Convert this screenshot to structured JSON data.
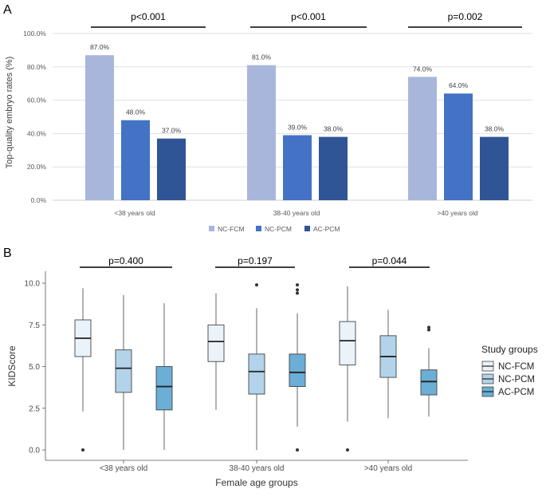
{
  "chart_data": [
    {
      "panel": "A",
      "type": "bar",
      "ylabel": "Top-quality embryo rates (%)",
      "ylim": [
        0,
        100
      ],
      "yticks": [
        "0.0%",
        "20.0%",
        "40.0%",
        "60.0%",
        "80.0%",
        "100.0%"
      ],
      "categories": [
        "<38 years old",
        "38-40 years old",
        ">40 years old"
      ],
      "series": [
        {
          "name": "NC-FCM",
          "color": "#a9b6dc",
          "values": [
            87.0,
            81.0,
            74.0
          ],
          "labels": [
            "87.0%",
            "81.0%",
            "74.0%"
          ]
        },
        {
          "name": "NC-PCM",
          "color": "#4472c4",
          "values": [
            48.0,
            39.0,
            64.0
          ],
          "labels": [
            "48.0%",
            "39.0%",
            "64.0%"
          ]
        },
        {
          "name": "AC-PCM",
          "color": "#305596",
          "values": [
            37.0,
            38.0,
            38.0
          ],
          "labels": [
            "37.0%",
            "38.0%",
            "38.0%"
          ]
        }
      ],
      "pvalues": [
        "p<0.001",
        "p<0.001",
        "p=0.002"
      ],
      "legend_position": "bottom"
    },
    {
      "panel": "B",
      "type": "box",
      "xlabel": "Female age groups",
      "ylabel": "KIDScore",
      "ylim": [
        0,
        10
      ],
      "yticks": [
        "0.0",
        "2.5",
        "5.0",
        "7.5",
        "10.0"
      ],
      "categories": [
        "<38 years old",
        "38-40 years old",
        ">40 years old"
      ],
      "legend_title": "Study groups",
      "legend_position": "right",
      "pvalues": [
        "p=0.400",
        "p=0.197",
        "p=0.044"
      ],
      "series": [
        {
          "name": "NC-FCM",
          "color": "#eaf2fa",
          "boxes": [
            {
              "min": 2.3,
              "q1": 5.6,
              "median": 6.7,
              "q3": 7.8,
              "max": 9.7,
              "outliers": [
                0.0
              ]
            },
            {
              "min": 2.4,
              "q1": 5.3,
              "median": 6.5,
              "q3": 7.5,
              "max": 9.4,
              "outliers": []
            },
            {
              "min": 1.7,
              "q1": 5.1,
              "median": 6.55,
              "q3": 7.7,
              "max": 9.8,
              "outliers": [
                0.0
              ]
            }
          ]
        },
        {
          "name": "NC-PCM",
          "color": "#b3d3ea",
          "boxes": [
            {
              "min": 0.0,
              "q1": 3.45,
              "median": 4.9,
              "q3": 6.0,
              "max": 9.3,
              "outliers": []
            },
            {
              "min": 0.0,
              "q1": 3.35,
              "median": 4.7,
              "q3": 5.75,
              "max": 8.5,
              "outliers": [
                9.9
              ]
            },
            {
              "min": 1.9,
              "q1": 4.35,
              "median": 5.6,
              "q3": 6.85,
              "max": 8.4,
              "outliers": []
            }
          ]
        },
        {
          "name": "AC-PCM",
          "color": "#6baed6",
          "boxes": [
            {
              "min": 0.0,
              "q1": 2.4,
              "median": 3.8,
              "q3": 5.0,
              "max": 8.8,
              "outliers": []
            },
            {
              "min": 1.4,
              "q1": 3.8,
              "median": 4.65,
              "q3": 5.75,
              "max": 8.2,
              "outliers": [
                0.0,
                9.4,
                9.6,
                9.9
              ]
            },
            {
              "min": 2.0,
              "q1": 3.3,
              "median": 4.1,
              "q3": 4.8,
              "max": 6.1,
              "outliers": [
                7.2,
                7.35
              ]
            }
          ]
        }
      ]
    }
  ]
}
